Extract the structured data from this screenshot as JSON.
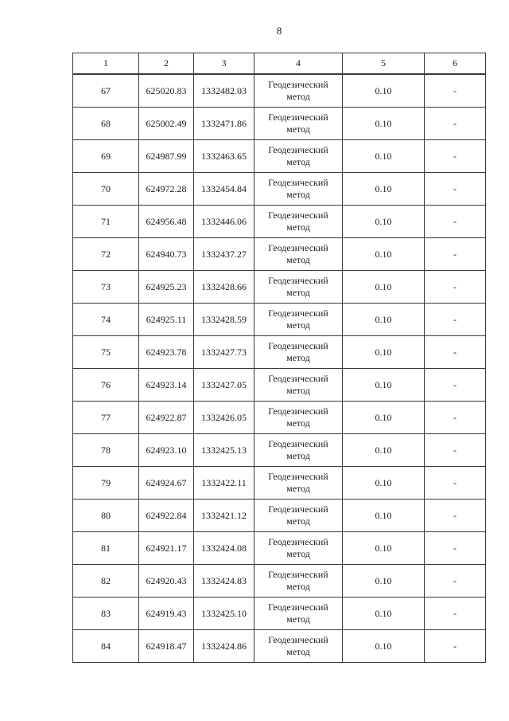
{
  "page": {
    "number": "8"
  },
  "table": {
    "headers": [
      "1",
      "2",
      "3",
      "4",
      "5",
      "6"
    ],
    "rows": [
      {
        "point": "67",
        "x": "625020.83",
        "y": "1332482.03",
        "method": "Геодезический метод",
        "accuracy": "0.10",
        "note": "-"
      },
      {
        "point": "68",
        "x": "625002.49",
        "y": "1332471.86",
        "method": "Геодезический метод",
        "accuracy": "0.10",
        "note": "-"
      },
      {
        "point": "69",
        "x": "624987.99",
        "y": "1332463.65",
        "method": "Геодезический метод",
        "accuracy": "0.10",
        "note": "-"
      },
      {
        "point": "70",
        "x": "624972.28",
        "y": "1332454.84",
        "method": "Геодезический метод",
        "accuracy": "0.10",
        "note": "-"
      },
      {
        "point": "71",
        "x": "624956.48",
        "y": "1332446.06",
        "method": "Геодезический метод",
        "accuracy": "0.10",
        "note": "-"
      },
      {
        "point": "72",
        "x": "624940.73",
        "y": "1332437.27",
        "method": "Геодезический метод",
        "accuracy": "0.10",
        "note": "-"
      },
      {
        "point": "73",
        "x": "624925.23",
        "y": "1332428.66",
        "method": "Геодезический метод",
        "accuracy": "0.10",
        "note": "-"
      },
      {
        "point": "74",
        "x": "624925.11",
        "y": "1332428.59",
        "method": "Геодезический метод",
        "accuracy": "0.10",
        "note": "-"
      },
      {
        "point": "75",
        "x": "624923.78",
        "y": "1332427.73",
        "method": "Геодезический метод",
        "accuracy": "0.10",
        "note": "-"
      },
      {
        "point": "76",
        "x": "624923.14",
        "y": "1332427.05",
        "method": "Геодезический метод",
        "accuracy": "0.10",
        "note": "-"
      },
      {
        "point": "77",
        "x": "624922.87",
        "y": "1332426.05",
        "method": "Геодезический метод",
        "accuracy": "0.10",
        "note": "-"
      },
      {
        "point": "78",
        "x": "624923.10",
        "y": "1332425.13",
        "method": "Геодезический метод",
        "accuracy": "0.10",
        "note": "-"
      },
      {
        "point": "79",
        "x": "624924.67",
        "y": "1332422.11",
        "method": "Геодезический метод",
        "accuracy": "0.10",
        "note": "-"
      },
      {
        "point": "80",
        "x": "624922.84",
        "y": "1332421.12",
        "method": "Геодезический метод",
        "accuracy": "0.10",
        "note": "-"
      },
      {
        "point": "81",
        "x": "624921.17",
        "y": "1332424.08",
        "method": "Геодезический метод",
        "accuracy": "0.10",
        "note": "-"
      },
      {
        "point": "82",
        "x": "624920.43",
        "y": "1332424.83",
        "method": "Геодезический метод",
        "accuracy": "0.10",
        "note": "-"
      },
      {
        "point": "83",
        "x": "624919.43",
        "y": "1332425.10",
        "method": "Геодезический метод",
        "accuracy": "0.10",
        "note": "-"
      },
      {
        "point": "84",
        "x": "624918.47",
        "y": "1332424.86",
        "method": "Геодезический метод",
        "accuracy": "0.10",
        "note": "-"
      }
    ]
  }
}
